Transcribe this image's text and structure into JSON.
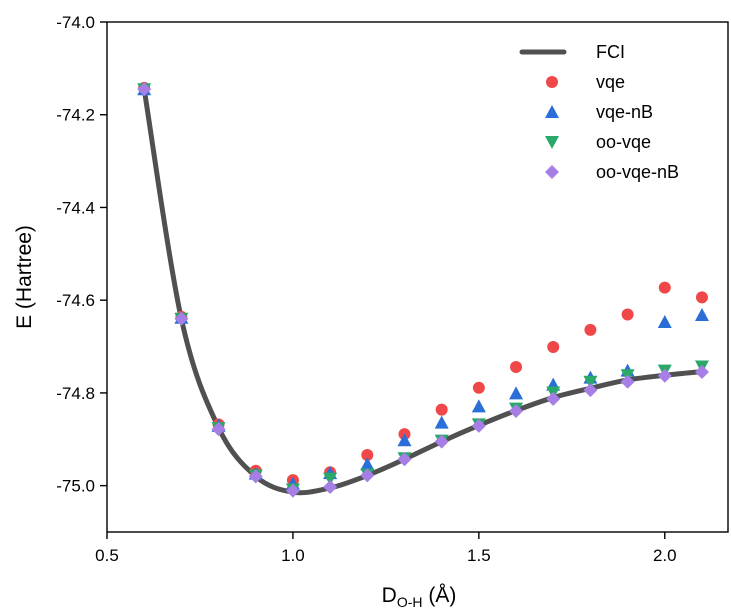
{
  "chart_data": {
    "type": "scatter",
    "title": "",
    "xlabel": {
      "main": "D",
      "sub": "O-H",
      "unit": " (Å)"
    },
    "ylabel": "E (Hartree)",
    "xlim": [
      0.5,
      2.17
    ],
    "ylim": [
      -75.1,
      -74.0
    ],
    "xticks": [
      0.5,
      1.0,
      1.5,
      2.0
    ],
    "xtick_labels": [
      "0.5",
      "1.0",
      "1.5",
      "2.0"
    ],
    "yticks": [
      -74.0,
      -74.2,
      -74.4,
      -74.6,
      -74.8,
      -75.0
    ],
    "ytick_labels": [
      "-74.0",
      "-74.2",
      "-74.4",
      "-74.6",
      "-74.8",
      "-75.0"
    ],
    "grid": false,
    "legend_position": "top-right",
    "x": [
      0.6,
      0.7,
      0.8,
      0.9,
      1.0,
      1.1,
      1.2,
      1.3,
      1.4,
      1.5,
      1.6,
      1.7,
      1.8,
      1.9,
      2.0,
      2.1
    ],
    "series": [
      {
        "name": "FCI",
        "kind": "line",
        "color": "#505050",
        "values": [
          -74.145,
          -74.64,
          -74.875,
          -74.98,
          -75.014,
          -75.005,
          -74.978,
          -74.943,
          -74.905,
          -74.87,
          -74.838,
          -74.81,
          -74.79,
          -74.772,
          -74.762,
          -74.754
        ]
      },
      {
        "name": "vqe",
        "kind": "marker",
        "marker": "circle",
        "color": "#f04848",
        "values": [
          -74.142,
          -74.636,
          -74.868,
          -74.968,
          -74.988,
          -74.971,
          -74.934,
          -74.889,
          -74.836,
          -74.789,
          -74.744,
          -74.701,
          -74.664,
          -74.631,
          -74.573,
          -74.594
        ]
      },
      {
        "name": "vqe-nB",
        "kind": "marker",
        "marker": "triangle-up",
        "color": "#2a6fd8",
        "values": [
          -74.145,
          -74.638,
          -74.871,
          -74.974,
          -74.996,
          -74.973,
          -74.954,
          -74.902,
          -74.864,
          -74.829,
          -74.801,
          -74.782,
          -74.767,
          -74.752,
          -74.647,
          -74.632
        ]
      },
      {
        "name": "oo-vqe",
        "kind": "marker",
        "marker": "triangle-down",
        "color": "#2aa86a",
        "values": [
          -74.145,
          -74.64,
          -74.876,
          -74.978,
          -75.008,
          -74.985,
          -74.976,
          -74.941,
          -74.903,
          -74.868,
          -74.834,
          -74.799,
          -74.776,
          -74.762,
          -74.752,
          -74.743
        ]
      },
      {
        "name": "oo-vqe-nB",
        "kind": "marker",
        "marker": "diamond",
        "color": "#a77de6",
        "values": [
          -74.145,
          -74.64,
          -74.878,
          -74.98,
          -75.011,
          -75.003,
          -74.978,
          -74.943,
          -74.905,
          -74.871,
          -74.839,
          -74.813,
          -74.794,
          -74.776,
          -74.763,
          -74.755
        ]
      }
    ]
  }
}
